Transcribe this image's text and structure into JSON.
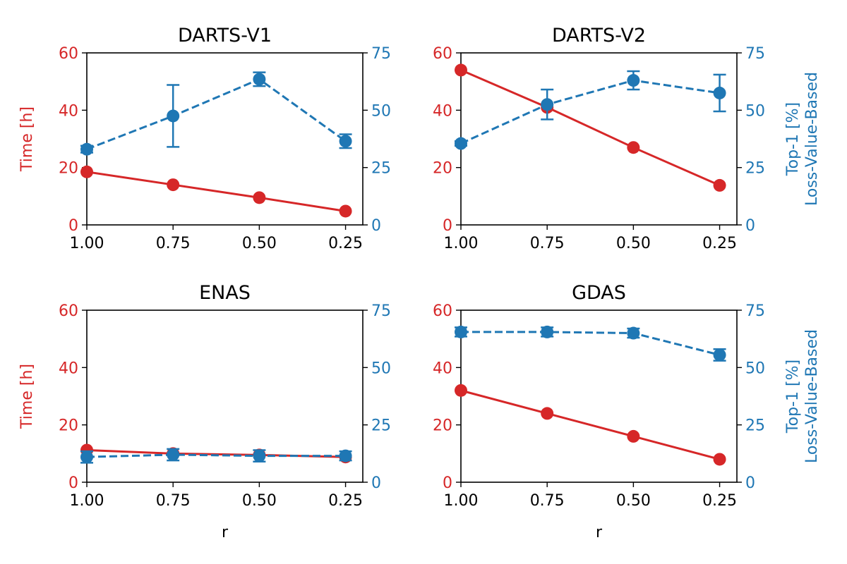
{
  "colors": {
    "time": "#d62728",
    "top1": "#1f77b4",
    "axis": "#000000"
  },
  "chart_data": [
    {
      "type": "line",
      "title": "DARTS-V1",
      "xlabel": "",
      "ylabel_left": "Time [h]",
      "ylabel_right": "",
      "x": [
        1.0,
        0.75,
        0.5,
        0.25
      ],
      "xticks": [
        "1.00",
        "0.75",
        "0.50",
        "0.25"
      ],
      "xlim": [
        1.0,
        0.2
      ],
      "ylim_left": [
        0,
        60
      ],
      "yticks_left": [
        "0",
        "20",
        "40",
        "60"
      ],
      "ylim_right": [
        0,
        75
      ],
      "yticks_right": [
        "0",
        "25",
        "50",
        "75"
      ],
      "series": [
        {
          "axis": "left",
          "style": "solid",
          "values": [
            18.5,
            14,
            9.5,
            4.8
          ]
        },
        {
          "axis": "right",
          "style": "dashed",
          "values": [
            33,
            47.5,
            63.5,
            36.5
          ],
          "errors": [
            1.5,
            13.5,
            3,
            3
          ]
        }
      ]
    },
    {
      "type": "line",
      "title": "DARTS-V2",
      "xlabel": "",
      "ylabel_left": "",
      "ylabel_right": "Top-1 [%]\nLoss-Value-Based",
      "x": [
        1.0,
        0.75,
        0.5,
        0.25
      ],
      "xticks": [
        "1.00",
        "0.75",
        "0.50",
        "0.25"
      ],
      "xlim": [
        1.0,
        0.2
      ],
      "ylim_left": [
        0,
        60
      ],
      "yticks_left": [
        "0",
        "20",
        "40",
        "60"
      ],
      "ylim_right": [
        0,
        75
      ],
      "yticks_right": [
        "0",
        "25",
        "50",
        "75"
      ],
      "series": [
        {
          "axis": "left",
          "style": "solid",
          "values": [
            54,
            41,
            27,
            13.8
          ]
        },
        {
          "axis": "right",
          "style": "dashed",
          "values": [
            35.5,
            52.5,
            63,
            57.5
          ],
          "errors": [
            1,
            6.5,
            4,
            8
          ]
        }
      ]
    },
    {
      "type": "line",
      "title": "ENAS",
      "xlabel": "r",
      "ylabel_left": "Time [h]",
      "ylabel_right": "",
      "x": [
        1.0,
        0.75,
        0.5,
        0.25
      ],
      "xticks": [
        "1.00",
        "0.75",
        "0.50",
        "0.25"
      ],
      "xlim": [
        1.0,
        0.2
      ],
      "ylim_left": [
        0,
        60
      ],
      "yticks_left": [
        "0",
        "20",
        "40",
        "60"
      ],
      "ylim_right": [
        0,
        75
      ],
      "yticks_right": [
        "0",
        "25",
        "50",
        "75"
      ],
      "series": [
        {
          "axis": "left",
          "style": "solid",
          "values": [
            11.2,
            10,
            9.5,
            8.8
          ]
        },
        {
          "axis": "right",
          "style": "dashed",
          "values": [
            11,
            12,
            11.5,
            11.5
          ],
          "errors": [
            2.5,
            2.5,
            2.5,
            2
          ]
        }
      ]
    },
    {
      "type": "line",
      "title": "GDAS",
      "xlabel": "r",
      "ylabel_left": "",
      "ylabel_right": "Top-1 [%]\nLoss-Value-Based",
      "x": [
        1.0,
        0.75,
        0.5,
        0.25
      ],
      "xticks": [
        "1.00",
        "0.75",
        "0.50",
        "0.25"
      ],
      "xlim": [
        1.0,
        0.2
      ],
      "ylim_left": [
        0,
        60
      ],
      "yticks_left": [
        "0",
        "20",
        "40",
        "60"
      ],
      "ylim_right": [
        0,
        75
      ],
      "yticks_right": [
        "0",
        "25",
        "50",
        "75"
      ],
      "series": [
        {
          "axis": "left",
          "style": "solid",
          "values": [
            32,
            24,
            16,
            8
          ]
        },
        {
          "axis": "right",
          "style": "dashed",
          "values": [
            65.5,
            65.5,
            65,
            55.5
          ],
          "errors": [
            2,
            2,
            2,
            2.5
          ]
        }
      ]
    }
  ]
}
